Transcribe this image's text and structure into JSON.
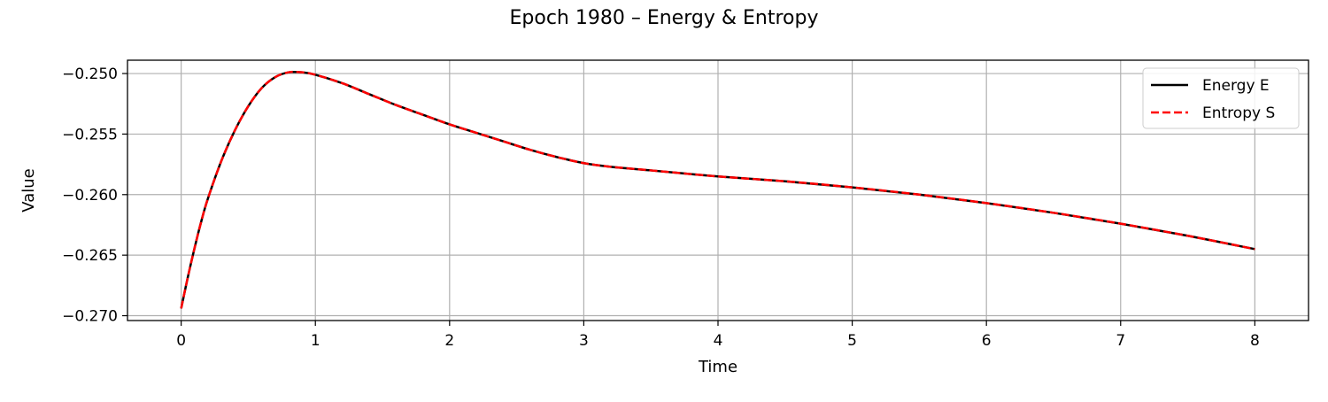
{
  "chart_data": {
    "type": "line",
    "title": "Epoch 1980 – Energy & Entropy",
    "xlabel": "Time",
    "ylabel": "Value",
    "xlim": [
      -0.4,
      8.4
    ],
    "ylim": [
      -0.2704,
      -0.2489
    ],
    "xticks": [
      0,
      1,
      2,
      3,
      4,
      5,
      6,
      7,
      8
    ],
    "xtick_labels": [
      "0",
      "1",
      "2",
      "3",
      "4",
      "5",
      "6",
      "7",
      "8"
    ],
    "yticks": [
      -0.25,
      -0.255,
      -0.26,
      -0.265,
      -0.27
    ],
    "ytick_labels": [
      "−0.250",
      "−0.255",
      "−0.260",
      "−0.265",
      "−0.270"
    ],
    "grid": true,
    "legend_position": "top-right",
    "x": [
      0,
      0.05,
      0.1,
      0.15,
      0.2,
      0.3,
      0.4,
      0.5,
      0.6,
      0.7,
      0.8,
      0.9,
      1.0,
      1.2,
      1.4,
      1.6,
      1.8,
      2.0,
      2.2,
      2.4,
      2.6,
      2.8,
      3.0,
      3.2,
      3.5,
      4.0,
      4.5,
      5.0,
      5.5,
      6.0,
      6.5,
      7.0,
      7.5,
      8.0
    ],
    "series": [
      {
        "name": "Energy E",
        "color": "#000000",
        "style": "solid",
        "values": [
          -0.2694,
          -0.2668,
          -0.2644,
          -0.2622,
          -0.2603,
          -0.2572,
          -0.2547,
          -0.2527,
          -0.2512,
          -0.2503,
          -0.2499,
          -0.2499,
          -0.2501,
          -0.2508,
          -0.2517,
          -0.2526,
          -0.2534,
          -0.2542,
          -0.2549,
          -0.2556,
          -0.2563,
          -0.2569,
          -0.2574,
          -0.2577,
          -0.258,
          -0.2585,
          -0.2589,
          -0.2594,
          -0.26,
          -0.2607,
          -0.2615,
          -0.2624,
          -0.2634,
          -0.2645
        ]
      },
      {
        "name": "Entropy S",
        "color": "#ff0000",
        "style": "dashed",
        "values": [
          -0.2694,
          -0.2668,
          -0.2644,
          -0.2622,
          -0.2603,
          -0.2572,
          -0.2547,
          -0.2527,
          -0.2512,
          -0.2503,
          -0.2499,
          -0.2499,
          -0.2501,
          -0.2508,
          -0.2517,
          -0.2526,
          -0.2534,
          -0.2542,
          -0.2549,
          -0.2556,
          -0.2563,
          -0.2569,
          -0.2574,
          -0.2577,
          -0.258,
          -0.2585,
          -0.2589,
          -0.2594,
          -0.26,
          -0.2607,
          -0.2615,
          -0.2624,
          -0.2634,
          -0.2645
        ]
      }
    ]
  }
}
